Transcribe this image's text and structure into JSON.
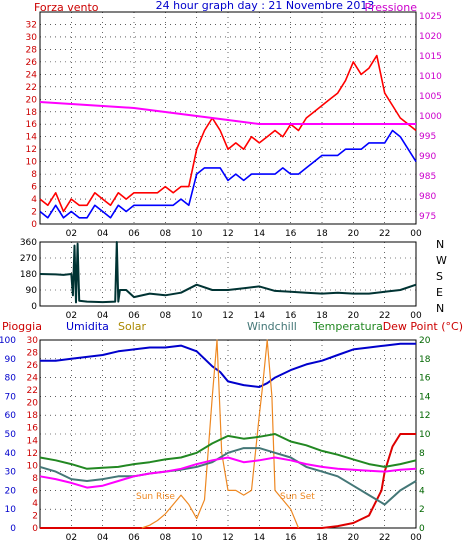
{
  "header": {
    "left_label": "Forza vento",
    "title": "24 hour graph day : 21 Novembre 2013",
    "right_label": "Pressione"
  },
  "colors": {
    "wind": "#ff0000",
    "gust": "#0000ff",
    "pressure": "#ff00ff",
    "direction": "#003333",
    "rain": "#dd0000",
    "humidity": "#0000cc",
    "solar": "#ee8822",
    "windchill": "#447777",
    "temperature": "#228822",
    "dewpoint": "#ff00ff",
    "grid": "#000000",
    "left_axis_text": "#cc0000",
    "right_axis_text": "#cc00cc",
    "right_axis_text_bottom": "#006600",
    "compass_text": "#000000"
  },
  "chart_data": [
    {
      "type": "line",
      "title": "24 hour graph day : 21 Novembre 2013",
      "ylabel_left": "Forza vento",
      "ylabel_right": "Pressione",
      "x_ticks": [
        "02",
        "04",
        "06",
        "08",
        "10",
        "12",
        "14",
        "16",
        "18",
        "20",
        "22",
        "00"
      ],
      "ylim_left": [
        0,
        34
      ],
      "yticks_left": [
        "0",
        "2",
        "4",
        "6",
        "8",
        "10",
        "12",
        "14",
        "16",
        "18",
        "20",
        "22",
        "24",
        "26",
        "28",
        "30",
        "32"
      ],
      "ylim_right": [
        973,
        1026
      ],
      "yticks_right": [
        "975",
        "980",
        "985",
        "990",
        "995",
        "1000",
        "1005",
        "1010",
        "1015",
        "1020",
        "1025"
      ],
      "grid": true,
      "series": [
        {
          "key": "wind",
          "x": [
            0,
            0.5,
            1,
            1.5,
            2,
            2.5,
            3,
            3.5,
            4,
            4.5,
            5,
            5.5,
            6,
            6.5,
            7,
            7.5,
            8,
            8.5,
            9,
            9.5,
            10,
            10.5,
            11,
            11.5,
            12,
            12.5,
            13,
            13.5,
            14,
            14.5,
            15,
            15.5,
            16,
            16.5,
            17,
            17.5,
            18,
            18.5,
            19,
            19.5,
            20,
            20.5,
            21,
            21.5,
            22,
            22.5,
            23,
            23.5,
            24
          ],
          "values": [
            4,
            3,
            5,
            2,
            4,
            3,
            3,
            5,
            4,
            3,
            5,
            4,
            5,
            5,
            5,
            5,
            6,
            5,
            6,
            6,
            12,
            15,
            17,
            15,
            12,
            13,
            12,
            14,
            13,
            14,
            15,
            14,
            16,
            15,
            17,
            18,
            19,
            20,
            21,
            23,
            26,
            24,
            25,
            27,
            21,
            19,
            17,
            16,
            15
          ]
        },
        {
          "key": "gust",
          "x": [
            0,
            0.5,
            1,
            1.5,
            2,
            2.5,
            3,
            3.5,
            4,
            4.5,
            5,
            5.5,
            6,
            6.5,
            7,
            7.5,
            8,
            8.5,
            9,
            9.5,
            10,
            10.5,
            11,
            11.5,
            12,
            12.5,
            13,
            13.5,
            14,
            14.5,
            15,
            15.5,
            16,
            16.5,
            17,
            17.5,
            18,
            18.5,
            19,
            19.5,
            20,
            20.5,
            21,
            21.5,
            22,
            22.5,
            23,
            23.5,
            24
          ],
          "values": [
            2,
            1,
            3,
            1,
            2,
            1,
            1,
            3,
            2,
            1,
            3,
            2,
            3,
            3,
            3,
            3,
            3,
            3,
            4,
            3,
            8,
            9,
            9,
            9,
            7,
            8,
            7,
            8,
            8,
            8,
            8,
            9,
            8,
            8,
            9,
            10,
            11,
            11,
            11,
            12,
            12,
            12,
            13,
            13,
            13,
            15,
            14,
            12,
            10
          ]
        },
        {
          "key": "pressure",
          "x": [
            0,
            2,
            4,
            6,
            8,
            10,
            12,
            14,
            16,
            18,
            20,
            22,
            24
          ],
          "values": [
            1003.5,
            1003,
            1002.5,
            1002,
            1001,
            1000,
            999,
            998,
            998,
            998,
            998,
            998,
            998
          ]
        }
      ]
    },
    {
      "type": "line",
      "ylabel_right": "N W S E N",
      "x_ticks": [
        "02",
        "04",
        "06",
        "08",
        "10",
        "12",
        "14",
        "16",
        "18",
        "20",
        "22",
        "00"
      ],
      "ylim": [
        0,
        360
      ],
      "yticks": [
        "0",
        "90",
        "180",
        "270",
        "360"
      ],
      "compass": [
        "N",
        "W",
        "S",
        "E",
        "N"
      ],
      "grid": true,
      "series": [
        {
          "key": "direction",
          "x": [
            0,
            1,
            1.5,
            2,
            2.1,
            2.2,
            2.3,
            2.4,
            2.5,
            3,
            4,
            4.8,
            4.9,
            5.0,
            5.1,
            5.5,
            6,
            7,
            8,
            9,
            10,
            11,
            12,
            13,
            14,
            15,
            16,
            17,
            18,
            19,
            20,
            21,
            22,
            23,
            24
          ],
          "values": [
            180,
            178,
            175,
            180,
            60,
            340,
            20,
            350,
            30,
            25,
            22,
            25,
            360,
            25,
            90,
            90,
            50,
            70,
            60,
            75,
            120,
            90,
            90,
            100,
            110,
            85,
            80,
            75,
            70,
            75,
            70,
            70,
            80,
            90,
            120
          ]
        }
      ]
    },
    {
      "type": "line",
      "labels": [
        "Pioggia",
        "Umidita",
        "Solar",
        "Windchill",
        "Temperatura",
        "Dew Point (°C)"
      ],
      "annotations": [
        "Sun Rise",
        "Sun Set"
      ],
      "x_ticks": [
        "02",
        "04",
        "06",
        "08",
        "10",
        "12",
        "14",
        "16",
        "18",
        "20",
        "22",
        "00"
      ],
      "ylim_humidity": [
        0,
        100
      ],
      "yticks_humidity": [
        "0",
        "10",
        "20",
        "30",
        "40",
        "50",
        "60",
        "70",
        "80",
        "90",
        "100"
      ],
      "ylim_rain": [
        0,
        30
      ],
      "yticks_rain": [
        "0",
        "2",
        "4",
        "6",
        "8",
        "10",
        "12",
        "14",
        "16",
        "18",
        "20",
        "22",
        "24",
        "26",
        "28",
        "30"
      ],
      "ylim_temperature": [
        0,
        20
      ],
      "yticks_temperature": [
        "0",
        "2",
        "4",
        "6",
        "8",
        "10",
        "12",
        "14",
        "16",
        "18",
        "20"
      ],
      "grid": true,
      "series": [
        {
          "key": "humidity",
          "axis": "humidity",
          "x": [
            0,
            1,
            2,
            3,
            4,
            5,
            6,
            7,
            8,
            9,
            10,
            11,
            11.5,
            12,
            13,
            14,
            14.5,
            15,
            16,
            17,
            18,
            19,
            20,
            21,
            22,
            23,
            24
          ],
          "values": [
            89,
            89,
            90,
            91,
            92,
            94,
            95,
            96,
            96,
            97,
            94,
            86,
            83,
            78,
            76,
            75,
            77,
            80,
            84,
            87,
            89,
            92,
            95,
            96,
            97,
            98,
            98
          ]
        },
        {
          "key": "rain",
          "axis": "rain",
          "x": [
            0,
            18,
            19,
            20,
            21,
            21.8,
            22,
            22.5,
            23,
            23.5,
            24
          ],
          "values": [
            0,
            0,
            0.3,
            0.8,
            2,
            6,
            9,
            13,
            15,
            15,
            15
          ]
        },
        {
          "key": "solar",
          "axis": "temperature",
          "x": [
            6.5,
            7,
            7.5,
            8,
            8.5,
            9,
            9.5,
            10,
            10.5,
            11,
            11.3,
            11.6,
            12,
            12.5,
            13,
            13.5,
            14,
            14.2,
            14.5,
            14.8,
            15,
            15.5,
            16,
            16.5
          ],
          "values": [
            0,
            0.3,
            0.8,
            1.5,
            2.5,
            3.5,
            2.5,
            1,
            3,
            14,
            20,
            8,
            4,
            4,
            3.5,
            4,
            12,
            15,
            20,
            14,
            4,
            3,
            2,
            0
          ]
        },
        {
          "key": "windchill",
          "axis": "temperature",
          "x": [
            0,
            1,
            2,
            3,
            4,
            5,
            6,
            7,
            8,
            9,
            10,
            11,
            12,
            13,
            14,
            15,
            16,
            17,
            18,
            19,
            20,
            21,
            22,
            23,
            24
          ],
          "values": [
            6.5,
            6,
            5.2,
            5,
            5.2,
            5.5,
            5.5,
            5.8,
            6,
            6.2,
            6.5,
            7,
            8,
            8.5,
            8.5,
            8,
            7.5,
            6.5,
            6,
            5.5,
            4.5,
            3.5,
            2.5,
            4,
            5
          ]
        },
        {
          "key": "temperature",
          "axis": "temperature",
          "x": [
            0,
            1,
            2,
            3,
            4,
            5,
            6,
            7,
            8,
            9,
            10,
            11,
            12,
            13,
            14,
            15,
            16,
            17,
            18,
            19,
            20,
            21,
            22,
            23,
            24
          ],
          "values": [
            7.5,
            7.2,
            6.8,
            6.3,
            6.4,
            6.5,
            6.8,
            7,
            7.3,
            7.5,
            8,
            9,
            9.8,
            9.5,
            9.7,
            10,
            9.2,
            8.8,
            8.2,
            7.8,
            7.3,
            6.8,
            6.5,
            6.8,
            7.2
          ]
        },
        {
          "key": "dewpoint",
          "axis": "temperature",
          "x": [
            0,
            1,
            2,
            3,
            4,
            5,
            6,
            7,
            8,
            9,
            10,
            11,
            12,
            13,
            14,
            15,
            16,
            17,
            18,
            19,
            20,
            21,
            22,
            23,
            24
          ],
          "values": [
            5.5,
            5.2,
            4.8,
            4.3,
            4.5,
            5,
            5.5,
            5.8,
            6,
            6.3,
            6.8,
            7.2,
            7.5,
            7,
            7.2,
            7.5,
            7.2,
            6.8,
            6.5,
            6.3,
            6.2,
            6.1,
            6.0,
            6.2,
            6.3
          ]
        }
      ]
    }
  ]
}
